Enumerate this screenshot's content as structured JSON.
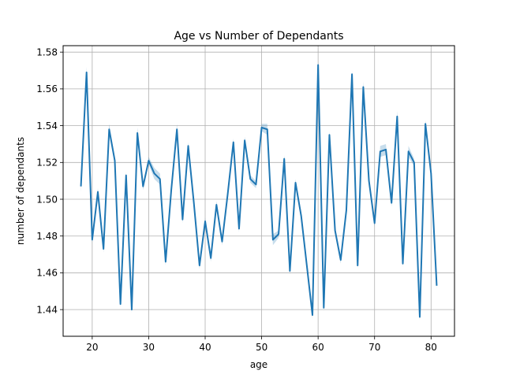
{
  "chart_data": {
    "type": "line",
    "title": "Age vs Number of Dependants",
    "xlabel": "age",
    "ylabel": "number of dependants",
    "xlim": [
      14.85,
      84.15
    ],
    "ylim": [
      1.4255,
      1.5835
    ],
    "xticks": [
      20,
      30,
      40,
      50,
      60,
      70,
      80
    ],
    "yticks": [
      1.44,
      1.46,
      1.48,
      1.5,
      1.52,
      1.54,
      1.56,
      1.58
    ],
    "xtick_labels": [
      "20",
      "30",
      "40",
      "50",
      "60",
      "70",
      "80"
    ],
    "ytick_labels": [
      "1.44",
      "1.46",
      "1.48",
      "1.50",
      "1.52",
      "1.54",
      "1.56",
      "1.58"
    ],
    "grid": true,
    "line_color": "#1f77b4",
    "band_color": "#1f77b4",
    "series": [
      {
        "x": [
          18,
          19,
          20,
          21,
          22,
          23,
          24,
          25,
          26,
          27,
          28,
          29,
          30,
          31,
          32,
          33,
          34,
          35,
          36,
          37,
          38,
          39,
          40,
          41,
          42,
          43,
          44,
          45,
          46,
          47,
          48,
          49,
          50,
          51,
          52,
          53,
          54,
          55,
          56,
          57,
          58,
          59,
          60,
          61,
          62,
          63,
          64,
          65,
          66,
          67,
          68,
          69,
          70,
          71,
          72,
          73,
          74,
          75,
          76,
          77,
          78,
          79,
          80,
          81
        ],
        "y": [
          1.507,
          1.569,
          1.478,
          1.504,
          1.473,
          1.538,
          1.521,
          1.443,
          1.513,
          1.44,
          1.536,
          1.507,
          1.521,
          1.514,
          1.511,
          1.466,
          1.505,
          1.538,
          1.489,
          1.529,
          1.498,
          1.464,
          1.488,
          1.468,
          1.497,
          1.477,
          1.503,
          1.531,
          1.484,
          1.532,
          1.511,
          1.508,
          1.539,
          1.538,
          1.478,
          1.481,
          1.522,
          1.461,
          1.509,
          1.491,
          1.464,
          1.437,
          1.573,
          1.441,
          1.535,
          1.483,
          1.467,
          1.494,
          1.568,
          1.464,
          1.561,
          1.51,
          1.487,
          1.526,
          1.527,
          1.498,
          1.545,
          1.465,
          1.526,
          1.52,
          1.436,
          1.541,
          1.514,
          1.453
        ],
        "band": [
          0.003,
          0.003,
          0.002,
          0.002,
          0.002,
          0.003,
          0.002,
          0.002,
          0.002,
          0.002,
          0.003,
          0.002,
          0.002,
          0.003,
          0.003,
          0.002,
          0.002,
          0.003,
          0.002,
          0.002,
          0.002,
          0.002,
          0.002,
          0.002,
          0.002,
          0.002,
          0.002,
          0.002,
          0.002,
          0.002,
          0.002,
          0.002,
          0.002,
          0.003,
          0.003,
          0.002,
          0.002,
          0.002,
          0.002,
          0.002,
          0.002,
          0.002,
          0.002,
          0.002,
          0.002,
          0.002,
          0.002,
          0.002,
          0.002,
          0.002,
          0.003,
          0.002,
          0.002,
          0.003,
          0.003,
          0.002,
          0.003,
          0.002,
          0.003,
          0.002,
          0.002,
          0.002,
          0.002,
          0.002
        ]
      }
    ]
  }
}
